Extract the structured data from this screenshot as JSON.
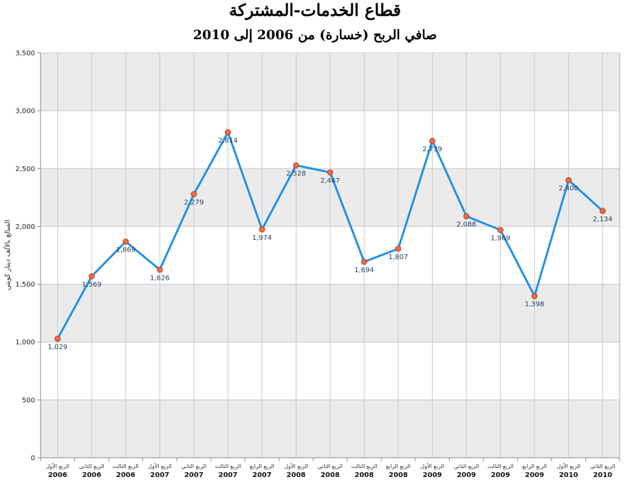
{
  "chart_data": {
    "type": "line",
    "title": "قطاع الخدمات-المشتركة",
    "subtitle": "صافي الربح (خسارة) من 2006 إلى 2010",
    "ylabel": "المبالغ بالألف دينار كويتي",
    "xlabel": "",
    "ylim": [
      0,
      3500
    ],
    "yticks": [
      "0",
      "500",
      "1,000",
      "1,500",
      "2,000",
      "2,500",
      "3,000",
      "3,500"
    ],
    "categories": [
      {
        "quarter": "الربع الأول",
        "year": "2006"
      },
      {
        "quarter": "الربع الثاني",
        "year": "2006"
      },
      {
        "quarter": "الربع الثالث",
        "year": "2006"
      },
      {
        "quarter": "الربع الأول",
        "year": "2007"
      },
      {
        "quarter": "الربع الثاني",
        "year": "2007"
      },
      {
        "quarter": "الربع الثالث",
        "year": "2007"
      },
      {
        "quarter": "الربع الرابع",
        "year": "2007"
      },
      {
        "quarter": "الربع الأول",
        "year": "2008"
      },
      {
        "quarter": "الربع الثاني",
        "year": "2008"
      },
      {
        "quarter": "الربع الثالث",
        "year": "2008"
      },
      {
        "quarter": "الربع الرابع",
        "year": "2008"
      },
      {
        "quarter": "الربع الأول",
        "year": "2009"
      },
      {
        "quarter": "الربع الثاني",
        "year": "2009"
      },
      {
        "quarter": "الربع الثالث",
        "year": "2009"
      },
      {
        "quarter": "الربع الرابع",
        "year": "2009"
      },
      {
        "quarter": "الربع الأول",
        "year": "2010"
      },
      {
        "quarter": "الربع الثاني",
        "year": "2010"
      }
    ],
    "series": [
      {
        "values": [
          1029,
          1569,
          1869,
          1626,
          2279,
          2814,
          1974,
          2528,
          2467,
          1694,
          1807,
          2739,
          2088,
          1969,
          1398,
          2400,
          2134
        ],
        "labels": [
          "1,029",
          "1,569",
          "1,869",
          "1,626",
          "2,279",
          "2,814",
          "1,974",
          "2,528",
          "2,467",
          "1,694",
          "1,807",
          "2,739",
          "2,088",
          "1,969",
          "1,398",
          "2,400",
          "2,134"
        ]
      }
    ],
    "grid": true,
    "colors": {
      "line": "#1e90e8",
      "marker_fill": "#ee6a45",
      "marker_stroke": "#9a3a1e",
      "band_fill": "#ebebeb",
      "grid": "#c8c8c8",
      "label": "#1f3e5c"
    }
  }
}
